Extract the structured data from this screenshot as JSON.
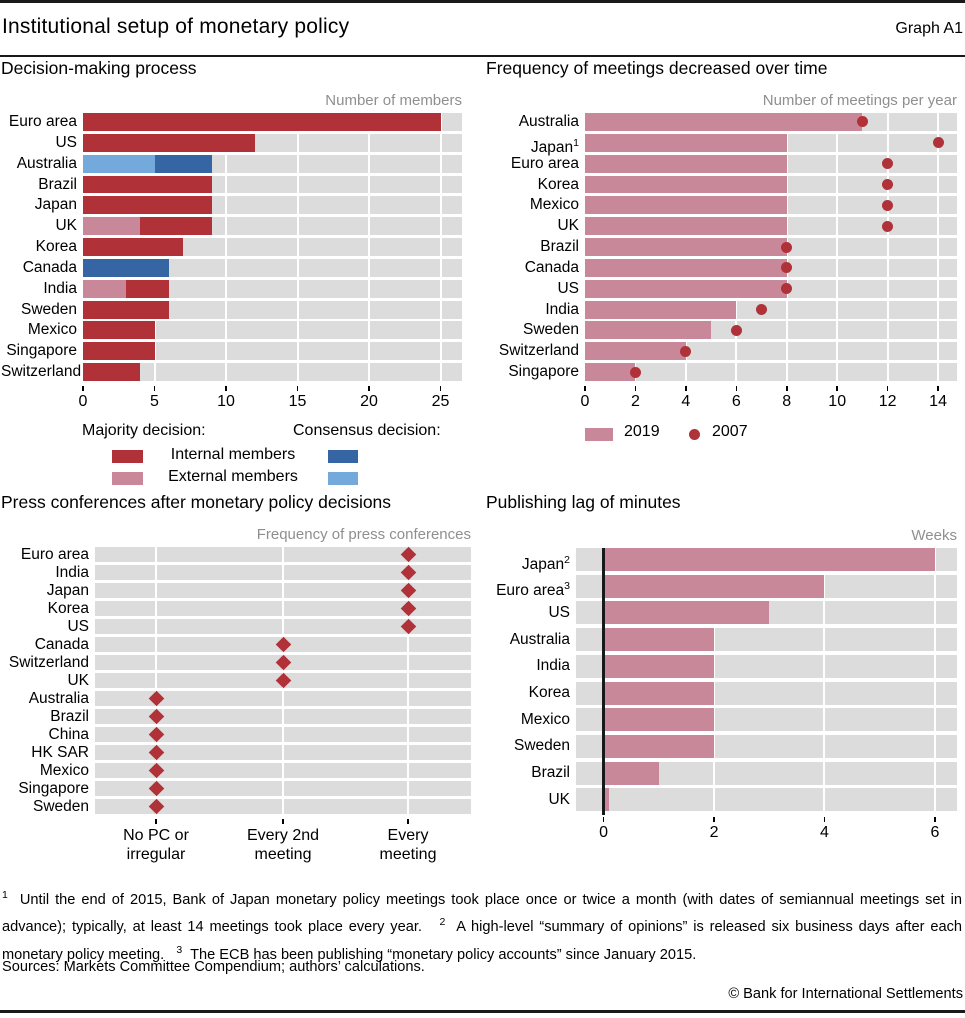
{
  "header": {
    "title": "Institutional setup of monetary policy",
    "graph_label": "Graph A1"
  },
  "colors": {
    "dark_red": "#b03138",
    "pink": "#c9879a",
    "dark_blue": "#3565a3",
    "light_blue": "#74aadb",
    "band_bg": "#dcdcdc",
    "grid": "#ffffff",
    "muted_text": "#8f8f8f",
    "zero_line": "#191919"
  },
  "chart_data": [
    {
      "id": "decision_making",
      "type": "bar",
      "title": "Decision-making process",
      "unit_label": "Number of members",
      "xticks": [
        0,
        5,
        10,
        15,
        20,
        25
      ],
      "xlim": [
        0,
        26.5
      ],
      "grid": true,
      "legend": {
        "columns": [
          "Majority decision:",
          "Consensus decision:"
        ],
        "rows": [
          {
            "label": "Internal members",
            "majority_color": "dark_red",
            "consensus_color": "dark_blue"
          },
          {
            "label": "External members",
            "majority_color": "pink",
            "consensus_color": "light_blue"
          }
        ]
      },
      "rows": [
        {
          "label": "Euro area",
          "segments": [
            {
              "color": "dark_red",
              "value": 25
            }
          ]
        },
        {
          "label": "US",
          "segments": [
            {
              "color": "dark_red",
              "value": 12
            }
          ]
        },
        {
          "label": "Australia",
          "segments": [
            {
              "color": "light_blue",
              "value": 5
            },
            {
              "color": "dark_blue",
              "value": 4
            }
          ]
        },
        {
          "label": "Brazil",
          "segments": [
            {
              "color": "dark_red",
              "value": 9
            }
          ]
        },
        {
          "label": "Japan",
          "segments": [
            {
              "color": "dark_red",
              "value": 9
            }
          ]
        },
        {
          "label": "UK",
          "segments": [
            {
              "color": "pink",
              "value": 4
            },
            {
              "color": "dark_red",
              "value": 5
            }
          ]
        },
        {
          "label": "Korea",
          "segments": [
            {
              "color": "dark_red",
              "value": 7
            }
          ]
        },
        {
          "label": "Canada",
          "segments": [
            {
              "color": "dark_blue",
              "value": 6
            }
          ]
        },
        {
          "label": "India",
          "segments": [
            {
              "color": "pink",
              "value": 3
            },
            {
              "color": "dark_red",
              "value": 3
            }
          ]
        },
        {
          "label": "Sweden",
          "segments": [
            {
              "color": "dark_red",
              "value": 6
            }
          ]
        },
        {
          "label": "Mexico",
          "segments": [
            {
              "color": "dark_red",
              "value": 5
            }
          ]
        },
        {
          "label": "Singapore",
          "segments": [
            {
              "color": "dark_red",
              "value": 5
            }
          ]
        },
        {
          "label": "Switzerland",
          "segments": [
            {
              "color": "dark_red",
              "value": 4
            }
          ]
        }
      ]
    },
    {
      "id": "meeting_frequency",
      "type": "bar+dot",
      "title": "Frequency of meetings decreased over time",
      "unit_label": "Number of meetings per year",
      "xticks": [
        0,
        2,
        4,
        6,
        8,
        10,
        12,
        14
      ],
      "xlim": [
        0,
        14.75
      ],
      "grid": true,
      "legend": [
        {
          "marker": "bar",
          "label": "2019",
          "color": "pink"
        },
        {
          "marker": "dot",
          "label": "2007",
          "color": "dark_red"
        }
      ],
      "rows": [
        {
          "label": "Australia",
          "bar": 11,
          "dot": 11
        },
        {
          "label": "Japan",
          "sup": "1",
          "bar": 8,
          "dot": 14
        },
        {
          "label": "Euro area",
          "bar": 8,
          "dot": 12
        },
        {
          "label": "Korea",
          "bar": 8,
          "dot": 12
        },
        {
          "label": "Mexico",
          "bar": 8,
          "dot": 12
        },
        {
          "label": "UK",
          "bar": 8,
          "dot": 12
        },
        {
          "label": "Brazil",
          "bar": 8,
          "dot": 8
        },
        {
          "label": "Canada",
          "bar": 8,
          "dot": 8
        },
        {
          "label": "US",
          "bar": 8,
          "dot": 8
        },
        {
          "label": "India",
          "bar": 6,
          "dot": 7
        },
        {
          "label": "Sweden",
          "bar": 5,
          "dot": 6
        },
        {
          "label": "Switzerland",
          "bar": 4,
          "dot": 4
        },
        {
          "label": "Singapore",
          "bar": 2,
          "dot": 2
        }
      ]
    },
    {
      "id": "press_conferences",
      "type": "scatter",
      "title": "Press conferences after monetary policy decisions",
      "unit_label": "Frequency of press conferences",
      "x_categories": [
        [
          "No PC or",
          "irregular"
        ],
        [
          "Every 2nd",
          "meeting"
        ],
        [
          "Every",
          "meeting"
        ]
      ],
      "marker": "diamond",
      "marker_color": "dark_red",
      "rows": [
        {
          "label": "Euro area",
          "category": 2
        },
        {
          "label": "India",
          "category": 2
        },
        {
          "label": "Japan",
          "category": 2
        },
        {
          "label": "Korea",
          "category": 2
        },
        {
          "label": "US",
          "category": 2
        },
        {
          "label": "Canada",
          "category": 1
        },
        {
          "label": "Switzerland",
          "category": 1
        },
        {
          "label": "UK",
          "category": 1
        },
        {
          "label": "Australia",
          "category": 0
        },
        {
          "label": "Brazil",
          "category": 0
        },
        {
          "label": "China",
          "category": 0
        },
        {
          "label": "HK SAR",
          "category": 0
        },
        {
          "label": "Mexico",
          "category": 0
        },
        {
          "label": "Singapore",
          "category": 0
        },
        {
          "label": "Sweden",
          "category": 0
        }
      ]
    },
    {
      "id": "publishing_lag",
      "type": "bar",
      "title": "Publishing lag of minutes",
      "unit_label": "Weeks",
      "xticks": [
        0,
        2,
        4,
        6
      ],
      "xlim": [
        -0.5,
        6.4
      ],
      "grid": true,
      "zero_line": true,
      "bar_color": "pink",
      "rows": [
        {
          "label": "Japan",
          "sup": "2",
          "value": 6
        },
        {
          "label": "Euro area",
          "sup": "3",
          "value": 4
        },
        {
          "label": "US",
          "value": 3
        },
        {
          "label": "Australia",
          "value": 2
        },
        {
          "label": "India",
          "value": 2
        },
        {
          "label": "Korea",
          "value": 2
        },
        {
          "label": "Mexico",
          "value": 2
        },
        {
          "label": "Sweden",
          "value": 2
        },
        {
          "label": "Brazil",
          "value": 1
        },
        {
          "label": "UK",
          "value": 0.1
        }
      ]
    }
  ],
  "footnotes": [
    {
      "marker": "1",
      "text": "Until the end of 2015, Bank of Japan monetary policy meetings took place once or twice a month (with dates of semiannual meetings set in advance); typically, at least 14 meetings took place every year."
    },
    {
      "marker": "2",
      "text": "A high-level “summary of opinions” is released six business days after each monetary policy meeting."
    },
    {
      "marker": "3",
      "text": "The ECB has been publishing “monetary policy accounts” since January 2015."
    }
  ],
  "sources": "Sources: Markets Committee Compendium; authors’ calculations.",
  "copyright": "© Bank for International Settlements"
}
